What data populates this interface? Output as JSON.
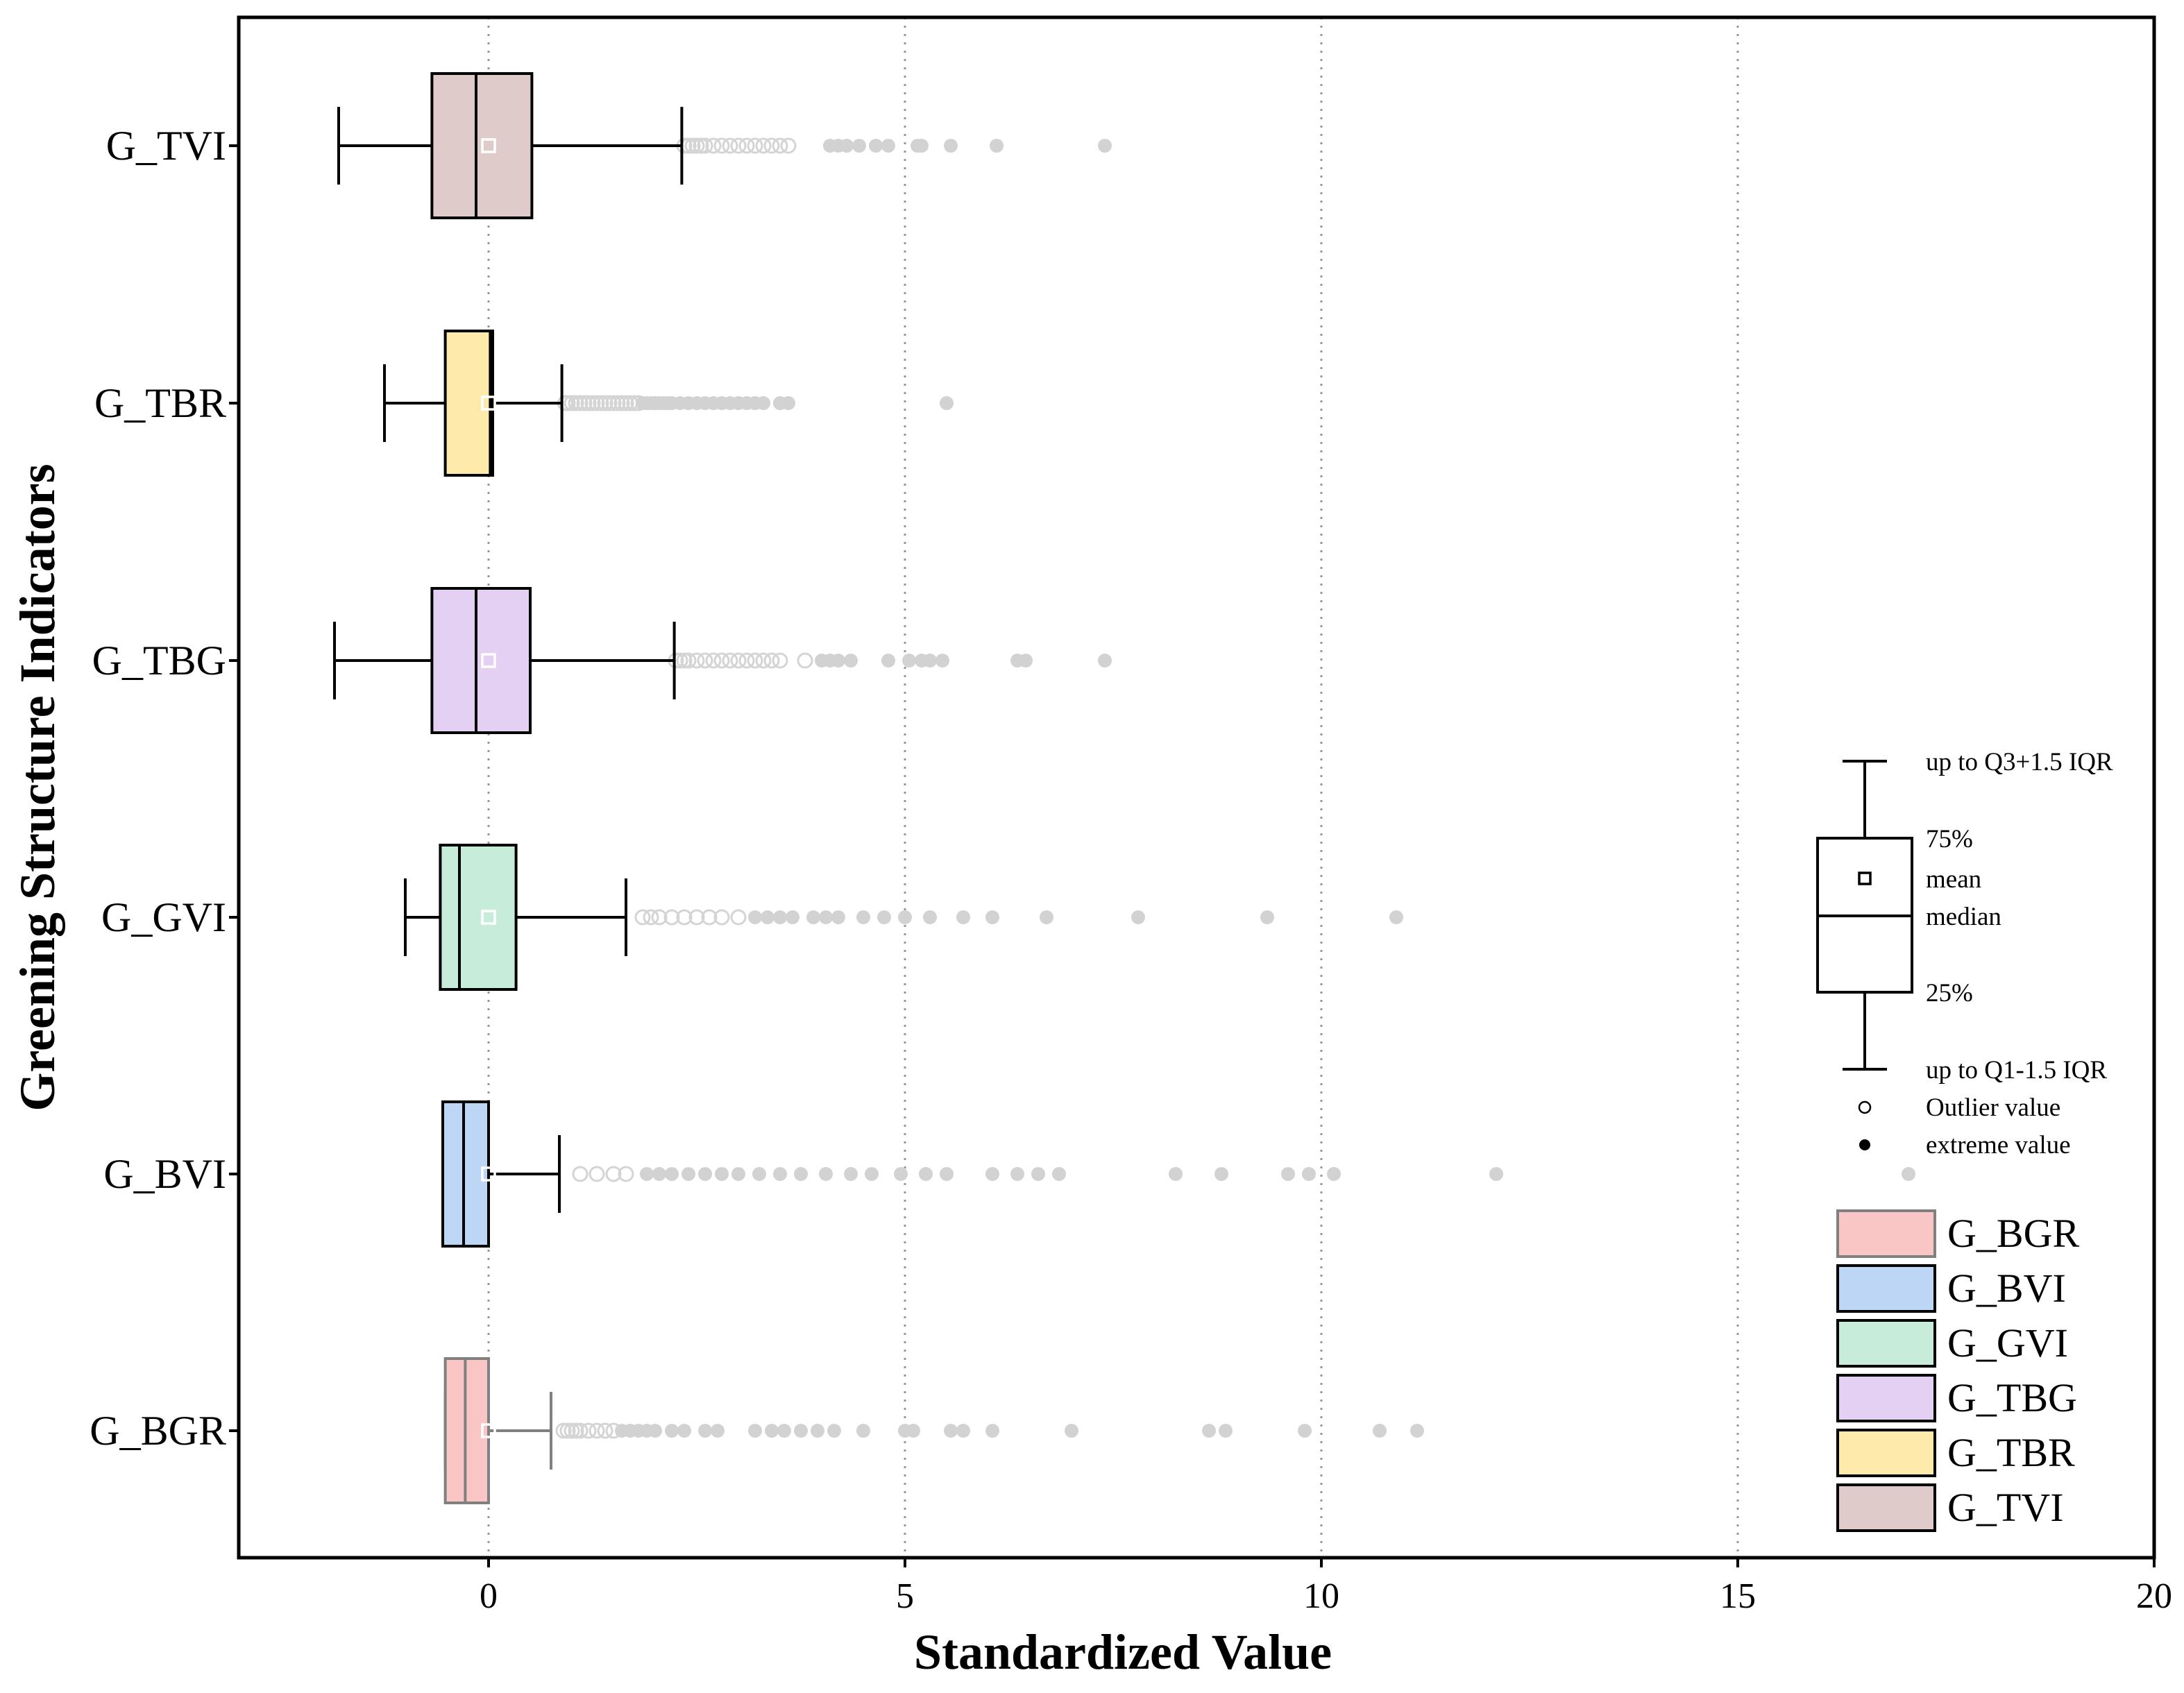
{
  "chart_data": {
    "type": "boxplot",
    "orientation": "horizontal",
    "xlabel": "Standardized Value",
    "ylabel": "Greening Structure Indicators",
    "xlim": [
      -3,
      20
    ],
    "xticks": [
      0,
      5,
      10,
      15,
      20
    ],
    "x_gridlines": [
      0,
      5,
      10,
      15
    ],
    "grid_style": "dotted vertical",
    "categories": [
      "G_TVI",
      "G_TBR",
      "G_TBG",
      "G_GVI",
      "G_BVI",
      "G_BGR"
    ],
    "series": [
      {
        "name": "G_TVI",
        "color": "#e0cbcb",
        "edge": "#000000",
        "whisker_low": -1.8,
        "q1": -0.68,
        "median": -0.15,
        "q3": 0.52,
        "whisker_high": 2.32,
        "mean": 0,
        "outliers": [
          2.35,
          2.4,
          2.45,
          2.5,
          2.55,
          2.6,
          2.7,
          2.8,
          2.9,
          3.0,
          3.1,
          3.2,
          3.3,
          3.4,
          3.5,
          3.6
        ],
        "extremes": [
          4.1,
          4.2,
          4.3,
          4.45,
          4.65,
          4.8,
          5.15,
          5.2,
          5.55,
          6.1,
          7.4
        ]
      },
      {
        "name": "G_TBR",
        "color": "#feeaaa",
        "edge": "#000000",
        "whisker_low": -1.25,
        "q1": -0.52,
        "median": 0.02,
        "q3": 0.05,
        "whisker_high": 0.88,
        "mean": 0,
        "outliers": [
          0.92,
          0.95,
          1.0,
          1.05,
          1.1,
          1.15,
          1.2,
          1.25,
          1.3,
          1.35,
          1.4,
          1.45,
          1.5,
          1.55,
          1.6,
          1.65,
          1.7,
          1.75,
          1.8
        ],
        "extremes": [
          1.85,
          1.9,
          1.95,
          2.0,
          2.05,
          2.1,
          2.15,
          2.2,
          2.3,
          2.4,
          2.5,
          2.6,
          2.7,
          2.8,
          2.9,
          3.0,
          3.1,
          3.2,
          3.3,
          3.5,
          3.6,
          5.5
        ]
      },
      {
        "name": "G_TBG",
        "color": "#e3d0f3",
        "edge": "#000000",
        "whisker_low": -1.85,
        "q1": -0.68,
        "median": -0.15,
        "q3": 0.5,
        "whisker_high": 2.23,
        "mean": 0,
        "outliers": [
          2.25,
          2.3,
          2.35,
          2.4,
          2.5,
          2.6,
          2.7,
          2.8,
          2.9,
          3.0,
          3.1,
          3.2,
          3.3,
          3.4,
          3.5,
          3.8
        ],
        "extremes": [
          4.0,
          4.1,
          4.2,
          4.35,
          4.8,
          5.05,
          5.2,
          5.3,
          5.45,
          6.35,
          6.45,
          7.4
        ]
      },
      {
        "name": "G_GVI",
        "color": "#c7ecd9",
        "edge": "#000000",
        "whisker_low": -1.0,
        "q1": -0.58,
        "median": -0.35,
        "q3": 0.33,
        "whisker_high": 1.65,
        "mean": 0,
        "outliers": [
          1.85,
          1.95,
          2.05,
          2.2,
          2.35,
          2.5,
          2.65,
          2.8,
          3.0
        ],
        "extremes": [
          3.2,
          3.35,
          3.5,
          3.65,
          3.9,
          4.05,
          4.2,
          4.5,
          4.75,
          5.0,
          5.3,
          5.7,
          6.05,
          6.7,
          7.8,
          9.35,
          10.9
        ]
      },
      {
        "name": "G_BVI",
        "color": "#bed6f5",
        "edge": "#000000",
        "whisker_low": -0.55,
        "q1": -0.55,
        "median": -0.3,
        "q3": 0.0,
        "whisker_high": 0.85,
        "mean": 0,
        "outliers": [
          1.1,
          1.3,
          1.5,
          1.65
        ],
        "extremes": [
          1.9,
          2.05,
          2.2,
          2.4,
          2.6,
          2.8,
          3.0,
          3.25,
          3.5,
          3.75,
          4.05,
          4.35,
          4.6,
          4.95,
          5.25,
          5.5,
          6.05,
          6.35,
          6.6,
          6.85,
          8.25,
          8.8,
          9.6,
          9.85,
          10.15,
          12.1,
          17.05
        ]
      },
      {
        "name": "G_BGR",
        "color": "#f9c5c5",
        "edge": "#808080",
        "whisker_low": -0.52,
        "q1": -0.52,
        "median": -0.28,
        "q3": 0.0,
        "whisker_high": 0.75,
        "mean": 0,
        "outliers": [
          0.9,
          0.95,
          1.0,
          1.05,
          1.1,
          1.2,
          1.3,
          1.4,
          1.5
        ],
        "extremes": [
          1.6,
          1.7,
          1.8,
          1.9,
          2.0,
          2.2,
          2.35,
          2.6,
          2.75,
          3.2,
          3.4,
          3.55,
          3.75,
          3.95,
          4.15,
          4.5,
          5.0,
          5.1,
          5.55,
          5.7,
          6.05,
          7.0,
          8.65,
          8.85,
          9.8,
          10.7,
          11.15
        ]
      }
    ],
    "legend_key": {
      "whisker_high_label": "up to Q3+1.5 IQR",
      "q3_label": "75%",
      "mean_label": "mean",
      "median_label": "median",
      "q1_label": "25%",
      "whisker_low_label": "up to Q1-1.5 IQR",
      "outlier_label": "Outlier value",
      "extreme_label": "extreme value"
    },
    "legend_entries": [
      "G_BGR",
      "G_BVI",
      "G_GVI",
      "G_TBG",
      "G_TBR",
      "G_TVI"
    ],
    "legend_position": "bottom-right"
  }
}
